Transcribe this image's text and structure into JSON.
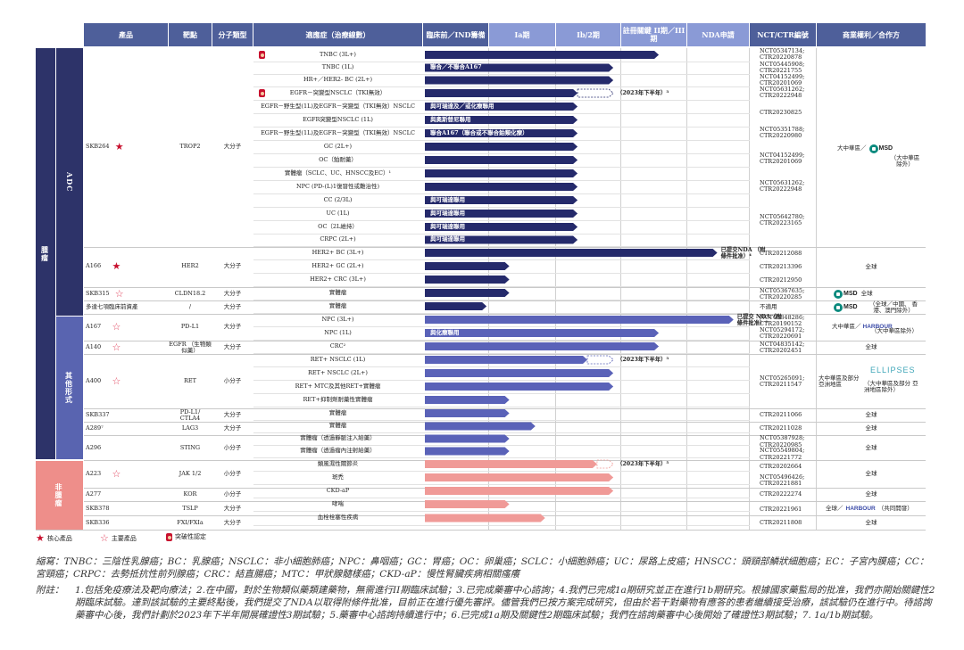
{
  "headers": {
    "product": "產品",
    "target": "靶點",
    "molecule": "分子類型",
    "indication": "適應症（治療線數）",
    "preclinical": "臨床前／IND籌備",
    "phase1a": "Ia期",
    "phase1b2": "Ib/2期",
    "pivotal": "註冊關鍵 II期／III期",
    "nda": "NDA申請",
    "trial_id": "NCT/CTR編號",
    "rights": "商業權利／合作方"
  },
  "bands": {
    "oncology": "腫瘤",
    "adc": "ADC",
    "other_modalities": "其他形式",
    "non_oncology": "非腫瘤"
  },
  "rows": [
    {
      "indication": "TNBC (3L+)",
      "breakthrough": true,
      "level": 0.72
    },
    {
      "indication": "TNBC (1L)",
      "level": 0.58,
      "label": "聯合／不聯合A167"
    },
    {
      "indication": "HR+／HER2- BC (2L+)",
      "level": 0.58
    },
    {
      "indication": "EGFR－突變型NSCLC（TKI無效）",
      "breakthrough": true,
      "level": 0.47,
      "dash_end": 0.58,
      "note": "（2023年下半年）³"
    },
    {
      "indication": "EGFR－野生型(1L)及EGFR－突變型（TKI無效）NSCLC",
      "level": 0.47,
      "label": "與可瑞達及／或化療聯用"
    },
    {
      "indication": "EGFR突變型NSCLC (1L)",
      "level": 0.47,
      "label": "與奧斯替尼聯用"
    },
    {
      "indication": "EGFR－野生型(1L)及EGFR－突變型（TKI無效）NSCLC",
      "level": 0.47,
      "label": "聯合A167（聯合或不聯合鉑類化療）"
    },
    {
      "indication": "GC (2L+)",
      "level": 0.47
    },
    {
      "indication": "OC（鉑耐藥）",
      "level": 0.47
    },
    {
      "indication": "實體瘤（SCLC、UC、HNSCC及EC）¹",
      "level": 0.47
    },
    {
      "indication": "NPC (PD-(L)1復發性或難治性)",
      "level": 0.47
    },
    {
      "indication": "CC (2/3L)",
      "level": 0.47,
      "label": "與可瑞達聯用"
    },
    {
      "indication": "UC (1L)",
      "level": 0.47,
      "label": "與可瑞達聯用"
    },
    {
      "indication": "OC（2L維持）",
      "level": 0.47,
      "label": "與可瑞達聯用"
    },
    {
      "indication": "CRPC (2L+)",
      "level": 0.47,
      "label": "與可瑞達聯用"
    },
    {
      "indication": "HER2+ BC (3L+)",
      "level": 0.9,
      "note": "已提交NDA （附條件批准）⁴"
    },
    {
      "indication": "HER2+ GC (2L+)",
      "level": 0.26
    },
    {
      "indication": "HER2+ CRC (3L+)",
      "level": 0.26
    },
    {
      "indication": "實體瘤",
      "level": 0.26
    },
    {
      "indication": "實體瘤",
      "level": 0.19
    },
    {
      "indication": "NPC (3L+)",
      "level": 0.95,
      "note": "已提交 NDA（附 條件批准）⁶"
    },
    {
      "indication": "NPC (1L)",
      "level": 0.72,
      "label": "與化療聯用"
    },
    {
      "indication": "CRC²",
      "level": 0.72
    },
    {
      "indication": "RET+ NSCLC (1L)",
      "level": 0.5,
      "dash_end": 0.58,
      "note": "（2023年下半年）³"
    },
    {
      "indication": "RET+ NSCLC (2L+)",
      "level": 0.58
    },
    {
      "indication": "RET+ MTC及其他RET+實體瘤",
      "level": 0.58
    },
    {
      "indication": "RET+抑制劑耐藥性實體瘤",
      "level": 0.26
    },
    {
      "indication": "實體瘤",
      "level": 0.26
    },
    {
      "indication": "實體瘤",
      "level": 0.34
    },
    {
      "indication": "實體瘤（透過靜脈注入給藥）",
      "level": 0.26
    },
    {
      "indication": "實體瘤（透過瘤內注射給藥）",
      "level": 0.26
    },
    {
      "indication": "類風濕性關節炎",
      "level": 0.53,
      "dash_end": 0.58,
      "note": "（2023年下半年）⁵"
    },
    {
      "indication": "斑禿",
      "level": 0.58
    },
    {
      "indication": "CKD-aP",
      "level": 0.58
    },
    {
      "indication": "哮喘",
      "level": 0.26
    },
    {
      "indication": "血栓栓塞性疾病",
      "level": 0.37
    }
  ],
  "products": [
    {
      "name": "SKB264",
      "mark": "core",
      "target": "TROP2",
      "molecule": "大分子"
    },
    {
      "name": "A166",
      "mark": "core",
      "target": "HER2",
      "molecule": "大分子"
    },
    {
      "name": "SKB315",
      "mark": "key",
      "target": "CLDN18.2",
      "molecule": "大分子"
    },
    {
      "name": "多達七項臨床前資產",
      "mark": "",
      "target": "/",
      "molecule": "大分子"
    },
    {
      "name": "A167",
      "mark": "key",
      "target": "PD-L1",
      "molecule": "大分子"
    },
    {
      "name": "A140",
      "mark": "key",
      "target": "EGFR （生物類似藥）",
      "molecule": "大分子"
    },
    {
      "name": "A400",
      "mark": "key",
      "target": "RET",
      "molecule": "小分子"
    },
    {
      "name": "SKB337",
      "mark": "",
      "target": "PD-L1/ CTLA4",
      "molecule": "大分子"
    },
    {
      "name": "A289⁷",
      "mark": "",
      "target": "LAG3",
      "molecule": "大分子"
    },
    {
      "name": "A296",
      "mark": "",
      "target": "STING",
      "molecule": "小分子"
    },
    {
      "name": "A223",
      "mark": "key",
      "target": "JAK 1/2",
      "molecule": "小分子"
    },
    {
      "name": "A277",
      "mark": "",
      "target": "KOR",
      "molecule": "小分子"
    },
    {
      "name": "SKB378",
      "mark": "",
      "target": "TSLP",
      "molecule": "大分子"
    },
    {
      "name": "SKB336",
      "mark": "",
      "target": "FXI/FXIa",
      "molecule": "大分子"
    }
  ],
  "trial_ids": {
    "r0": "NCT05347134; CTR20220878",
    "r1": "NCT05445908; CTR20221755",
    "r2": "NCT04152499; CTR20201069",
    "r3": "NCT05631262; CTR20222948",
    "r4": "CTR20230825",
    "r6": "NCT05351788; CTR20220980",
    "r7": "NCT04152499; CTR20201069",
    "r9": "NCT05631262; CTR20222948",
    "r11": "NCT05642780; CTR20223165",
    "r15": "CTR20212088",
    "r16": "CTR20213396",
    "r17": "CTR20212950",
    "r18": "NCT05367635; CTR20220285",
    "r19": "不適用",
    "r20": "NCT03848286; CTR20190152",
    "r21": "NCT05294172; CTR20220691",
    "r22": "NCT04835142; CTR20202451",
    "r23": "NCT05265091; CTR20211547",
    "r27": "CTR20211066",
    "r28": "CTR20211028",
    "r29": "NCT05387928; CTR20220985",
    "r30": "NCT05549804; CTR20221772",
    "r31": "CTR20202664",
    "r32": "NCT05496426; CTR20221881",
    "r33": "CTR20222274",
    "r34": "CTR20221961",
    "r35": "CTR20211808"
  },
  "rights": {
    "skb264_pre": "大中華區／",
    "skb264_note": "（大中華區 除外）",
    "msd": "MSD",
    "global": "全球",
    "skb315_note": "全球",
    "a7_note": "（全球／中國、 香港、澳門除外）",
    "a167_pre": "大中華區／",
    "a167_note": "（大中華區除外）",
    "harbour": "HARBOUR",
    "a400_pre": "大中華區及部分 亞洲地區",
    "ellipses": "ELLIPSES",
    "a400_note": "（大中華區及部分 亞洲地區除外）",
    "skb378_pre": "全球／",
    "skb378_note": "（共同開發）"
  },
  "legend": {
    "core": "核心產品",
    "key": "主要產品",
    "breakthrough": "突破性認定"
  },
  "footnotes": {
    "abbr_label": "縮寫：",
    "abbr": "TNBC：三陰性乳腺癌；BC：乳腺癌；NSCLC：非小細胞肺癌；NPC：鼻咽癌；GC：胃癌；OC：卵巢癌；SCLC：小細胞肺癌；UC：尿路上皮癌；HNSCC：頭頸部鱗狀細胞癌；EC：子宮內膜癌；CC：宮頸癌；CRPC：去勢抵抗性前列腺癌；CRC：結直腸癌；MTC：甲狀腺髓樣癌；CKD-aP：慢性腎臟疾病相關瘙癢",
    "notes_label": "附註：",
    "notes": "1.包括免疫療法及靶向療法；2.在中國，對於生物類似藥類建藥物，無需進行II期臨床試驗；3.已完成藥審中心諮詢；4.我們已完成1a期研究並正在進行1b期研究。根據國家藥監局的批准，我們亦開始關鍵性2期臨床試驗。達到該試驗的主要終點後，我們提交了NDA以取得附條件批准，目前正在進行優先審評。儘管我們已按方案完成研究，但由於若干對藥物有應答的患者繼續接受治療，該試驗仍在進行中。待諮詢藥審中心後，我們計劃於2023年下半年開展確證性3期試驗；5.藥審中心諮詢持續進行中；6.已完成1a期及關鍵性2期臨床試驗；我們在諮詢藥審中心後開始了確證性3期試驗；7. 1a/1b期試驗。"
  },
  "colors": {
    "adc": "#252a6b",
    "other": "#5a62b8",
    "nononc": "#f09a97",
    "band_dark": "#2d3369",
    "band_mid": "#5964b0",
    "band_pink": "#ee8e8a",
    "header": "#4e5f9a"
  }
}
